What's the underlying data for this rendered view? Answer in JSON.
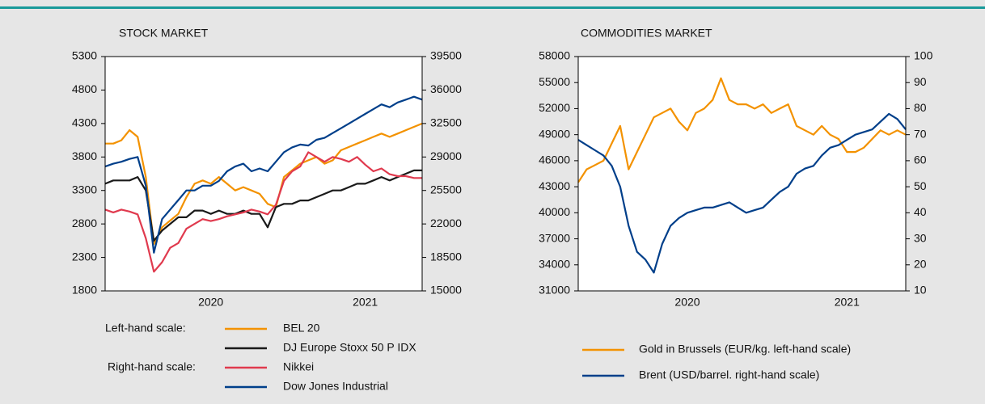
{
  "chart_data": [
    {
      "type": "line",
      "title": "STOCK MARKET",
      "categories": [
        null,
        null,
        null,
        null,
        null,
        null,
        null,
        null,
        null,
        null,
        null,
        null,
        null,
        "2020",
        null,
        null,
        null,
        null,
        null,
        null,
        null,
        null,
        null,
        null,
        null,
        null,
        null,
        null,
        null,
        null,
        null,
        null,
        "2021",
        null,
        null,
        null,
        null,
        null,
        null,
        null
      ],
      "ylim": [
        1800,
        5300
      ],
      "yticks": [
        1800,
        2300,
        2800,
        3300,
        3800,
        4300,
        4800,
        5300
      ],
      "y2lim": [
        15000,
        39500
      ],
      "y2ticks": [
        15000,
        18500,
        22000,
        25500,
        29000,
        32500,
        36000,
        39500
      ],
      "left_scale_label": "Left-hand scale:",
      "right_scale_label": "Right-hand scale:",
      "series": [
        {
          "name": "BEL 20",
          "color": "#f39200",
          "values": [
            4000,
            4000,
            4050,
            4200,
            4100,
            3500,
            2500,
            2750,
            2850,
            2950,
            3200,
            3400,
            3450,
            3400,
            3500,
            3400,
            3300,
            3350,
            3300,
            3250,
            3100,
            3050,
            3500,
            3600,
            3700,
            3750,
            3800,
            3700,
            3750,
            3900,
            3950,
            4000,
            4050,
            4100,
            4150,
            4100,
            4150,
            4200,
            4250,
            4300
          ]
        },
        {
          "name": "DJ Europe Stoxx 50 P IDX",
          "color": "#1a1a1a",
          "values": [
            3400,
            3450,
            3450,
            3450,
            3500,
            3300,
            2550,
            2700,
            2800,
            2900,
            2900,
            3000,
            3000,
            2950,
            3000,
            2950,
            2950,
            3000,
            2950,
            2950,
            2750,
            3050,
            3100,
            3100,
            3150,
            3150,
            3200,
            3250,
            3300,
            3300,
            3350,
            3400,
            3400,
            3450,
            3500,
            3450,
            3500,
            3550,
            3600,
            3600
          ]
        },
        {
          "name": "Nikkei",
          "color": "#e03a4e",
          "axis": "y2",
          "values": [
            23500,
            23200,
            23500,
            23300,
            23000,
            20500,
            17000,
            18000,
            19500,
            20000,
            21500,
            22000,
            22500,
            22300,
            22500,
            22800,
            23000,
            23200,
            23500,
            23300,
            23000,
            24000,
            26500,
            27500,
            28000,
            29500,
            29000,
            28500,
            29000,
            28800,
            28500,
            29000,
            28200,
            27500,
            27800,
            27200,
            27000,
            27000,
            26800,
            26800
          ]
        },
        {
          "name": "Dow Jones Industrial",
          "color": "#003f8a",
          "axis": "y2",
          "values": [
            28000,
            28300,
            28500,
            28800,
            29000,
            26000,
            19000,
            22500,
            23500,
            24500,
            25500,
            25500,
            26000,
            26000,
            26500,
            27500,
            28000,
            28300,
            27500,
            27800,
            27500,
            28500,
            29500,
            30000,
            30300,
            30200,
            30800,
            31000,
            31500,
            32000,
            32500,
            33000,
            33500,
            34000,
            34500,
            34200,
            34700,
            35000,
            35300,
            35000
          ]
        }
      ]
    },
    {
      "type": "line",
      "title": "COMMODITIES MARKET",
      "categories": [
        null,
        null,
        null,
        null,
        null,
        null,
        null,
        null,
        null,
        null,
        null,
        null,
        null,
        "2020",
        null,
        null,
        null,
        null,
        null,
        null,
        null,
        null,
        null,
        null,
        null,
        null,
        null,
        null,
        null,
        null,
        null,
        null,
        "2021",
        null,
        null,
        null,
        null,
        null,
        null,
        null
      ],
      "ylim": [
        31000,
        58000
      ],
      "yticks": [
        31000,
        34000,
        37000,
        40000,
        43000,
        46000,
        49000,
        52000,
        55000,
        58000
      ],
      "y2lim": [
        10,
        100
      ],
      "y2ticks": [
        10,
        20,
        30,
        40,
        50,
        60,
        70,
        80,
        90,
        100
      ],
      "series": [
        {
          "name": "Gold in Brussels (EUR/kg. left-hand scale)",
          "color": "#f39200",
          "values": [
            43500,
            45000,
            45500,
            46000,
            48000,
            50000,
            45000,
            47000,
            49000,
            51000,
            51500,
            52000,
            50500,
            49500,
            51500,
            52000,
            53000,
            55500,
            53000,
            52500,
            52500,
            52000,
            52500,
            51500,
            52000,
            52500,
            50000,
            49500,
            49000,
            50000,
            49000,
            48500,
            47000,
            47000,
            47500,
            48500,
            49500,
            49000,
            49500,
            49000
          ]
        },
        {
          "name": "Brent (USD/barrel. right-hand scale)",
          "color": "#003f8a",
          "axis": "y2",
          "values": [
            68,
            66,
            64,
            62,
            58,
            50,
            35,
            25,
            22,
            17,
            28,
            35,
            38,
            40,
            41,
            42,
            42,
            43,
            44,
            42,
            40,
            41,
            42,
            45,
            48,
            50,
            55,
            57,
            58,
            62,
            65,
            66,
            68,
            70,
            71,
            72,
            75,
            78,
            76,
            72
          ]
        }
      ]
    }
  ]
}
